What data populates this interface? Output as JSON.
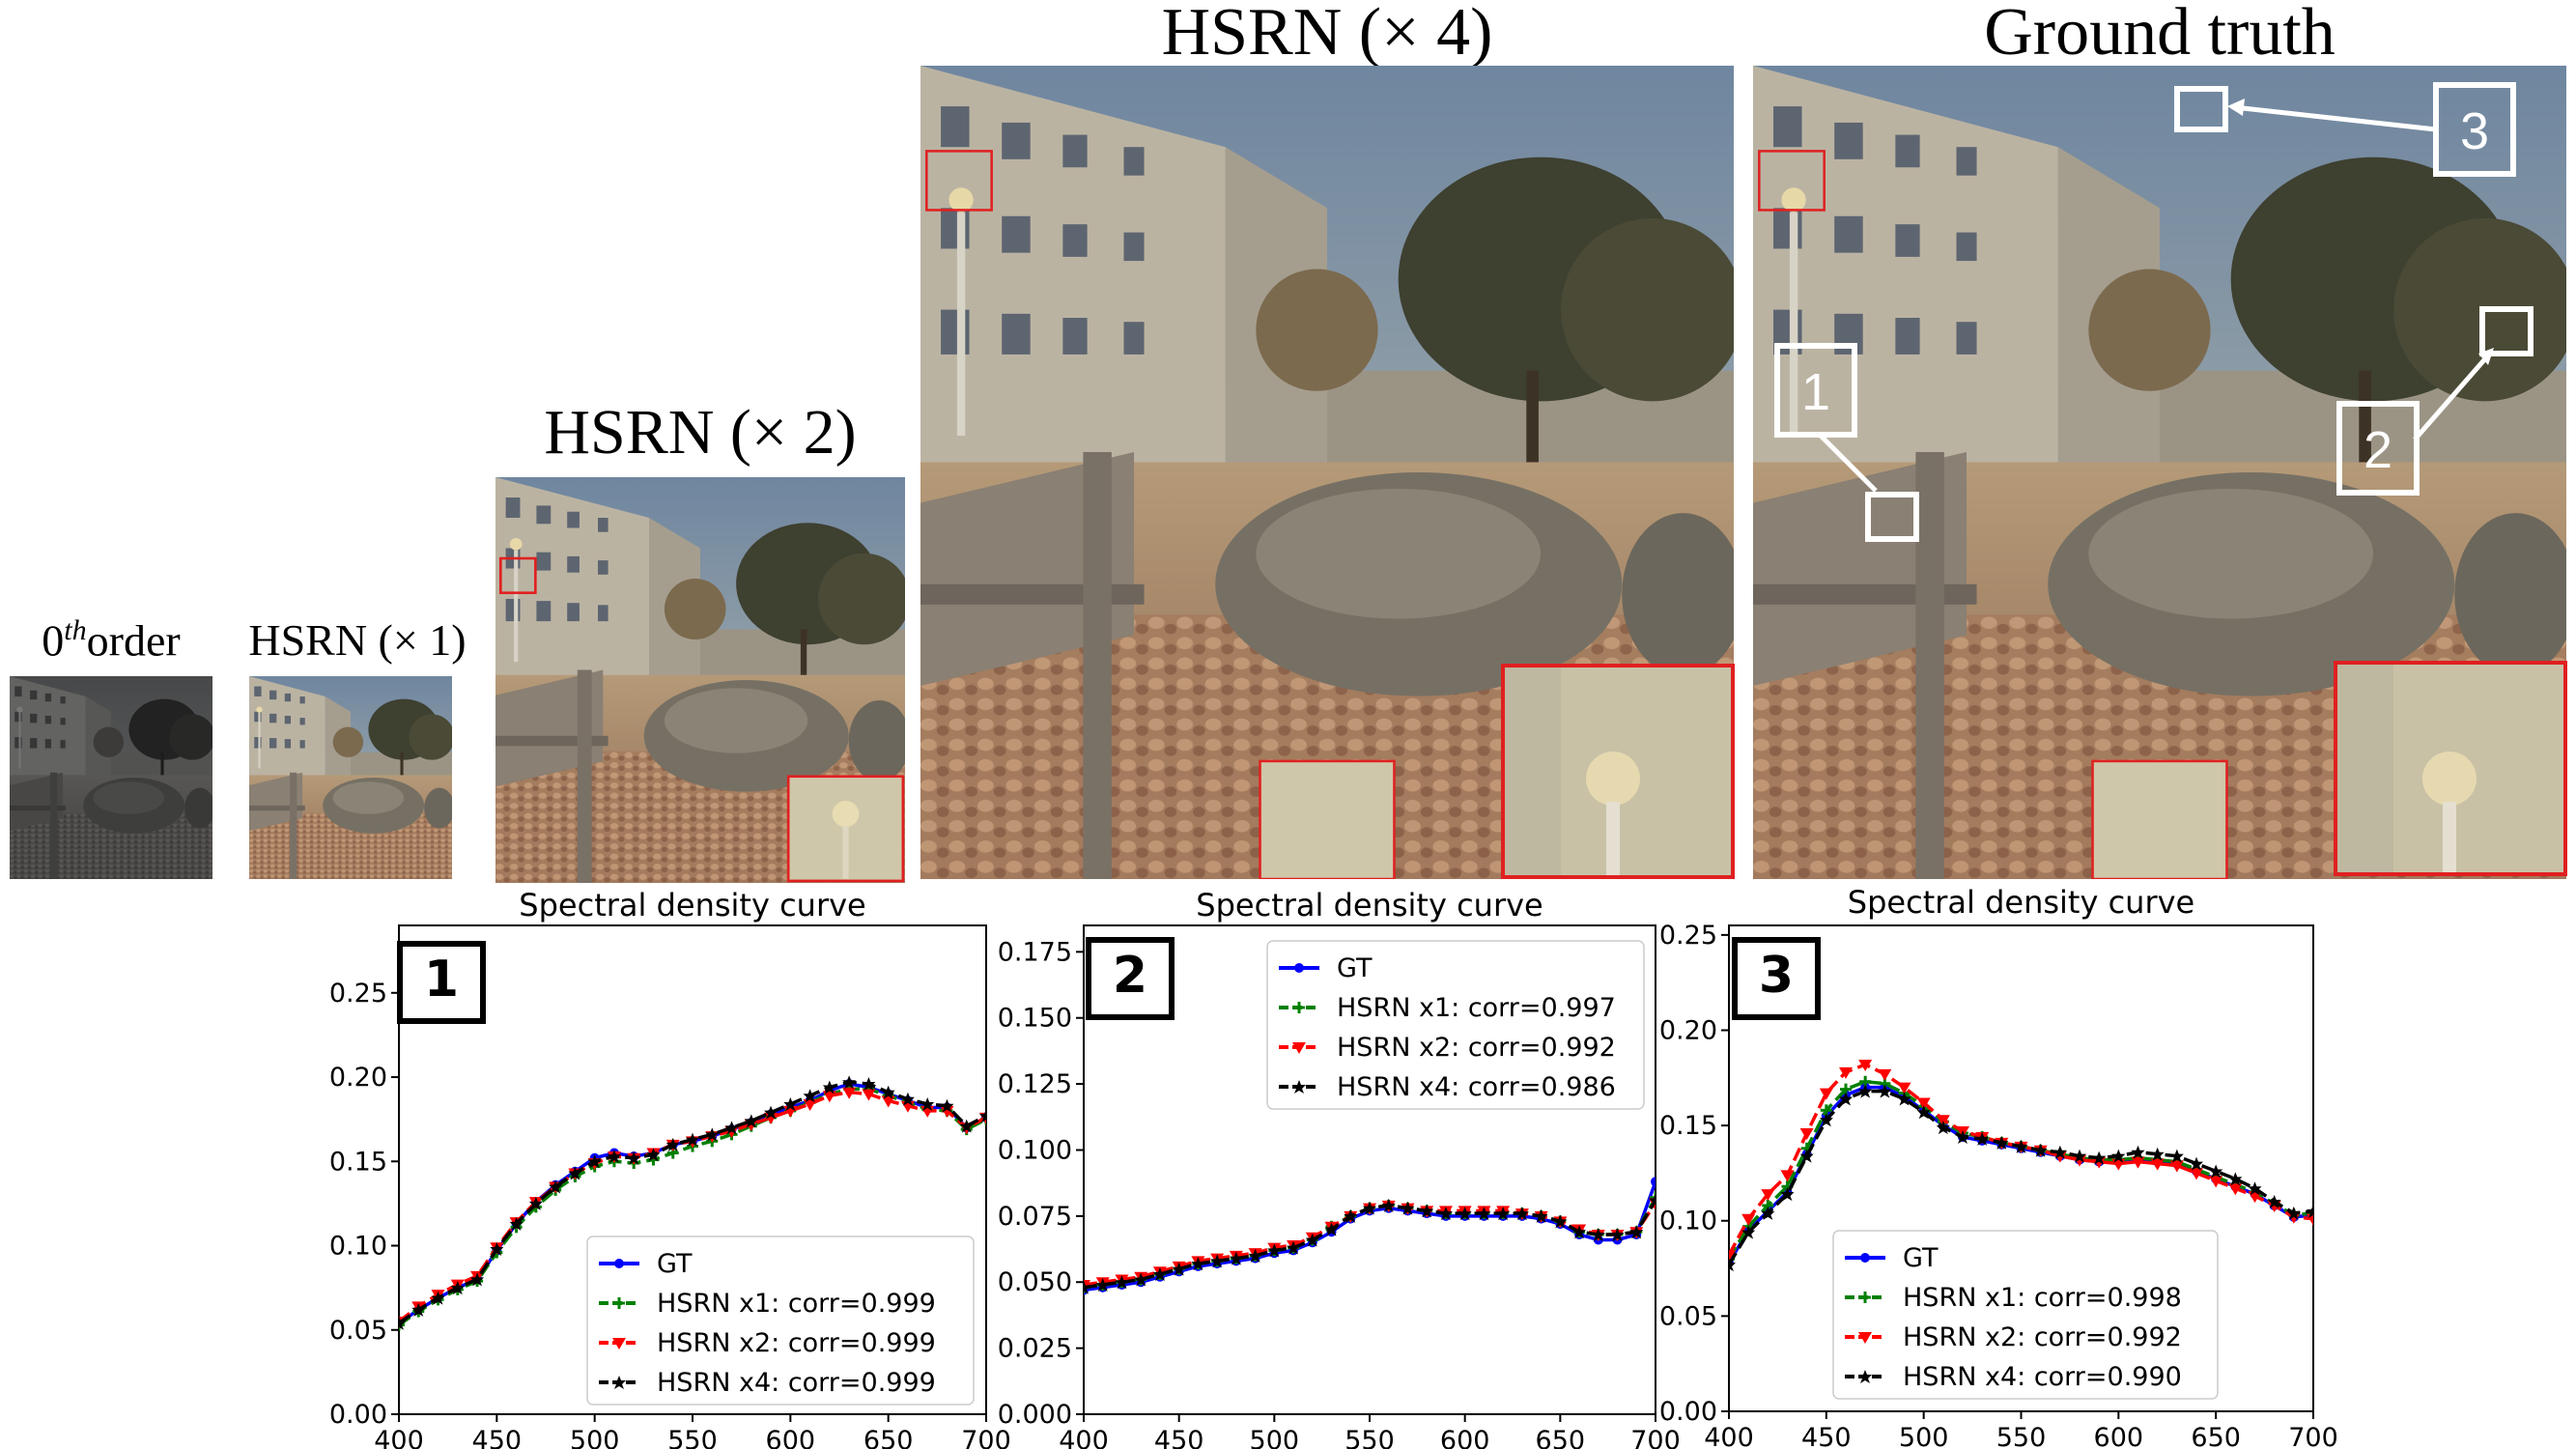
{
  "figure": {
    "panels": [
      {
        "id": "zeroth",
        "title_main": "0",
        "title_sup": "th",
        "title_sub": "order"
      },
      {
        "id": "x1",
        "title": "HSRN (× 1)"
      },
      {
        "id": "x2",
        "title": "HSRN (× 2)"
      },
      {
        "id": "x4",
        "title": "HSRN (× 4)"
      },
      {
        "id": "gt",
        "title": "Ground truth"
      }
    ],
    "callouts": [
      "1",
      "2",
      "3"
    ]
  },
  "colors": {
    "gt": "#0000ff",
    "x1": "#008000",
    "x2": "#ff0000",
    "x4": "#000000",
    "zoom_box": "#e02020",
    "callout_box": "#ffffff"
  },
  "chart_data": [
    {
      "type": "line",
      "panel_label": "1",
      "title": "Spectral density curve",
      "xlim": [
        400,
        700
      ],
      "ylim": [
        0.0,
        0.29
      ],
      "xticks": [
        "400",
        "450",
        "500",
        "550",
        "600",
        "650",
        "700"
      ],
      "yticks": [
        "0.00",
        "0.05",
        "0.10",
        "0.15",
        "0.20",
        "0.25"
      ],
      "legend_position": "lower-right",
      "x": [
        400,
        410,
        420,
        430,
        440,
        450,
        460,
        470,
        480,
        490,
        500,
        510,
        520,
        530,
        540,
        550,
        560,
        570,
        580,
        590,
        600,
        610,
        620,
        630,
        640,
        650,
        660,
        670,
        680,
        690,
        700
      ],
      "series": [
        {
          "name": "GT",
          "key": "gt",
          "values": [
            0.054,
            0.062,
            0.069,
            0.075,
            0.08,
            0.097,
            0.113,
            0.126,
            0.136,
            0.144,
            0.152,
            0.155,
            0.153,
            0.155,
            0.16,
            0.162,
            0.165,
            0.169,
            0.173,
            0.178,
            0.182,
            0.186,
            0.192,
            0.196,
            0.194,
            0.19,
            0.186,
            0.182,
            0.182,
            0.17,
            0.176
          ]
        },
        {
          "name": "HSRN x1: corr=0.999",
          "key": "x1",
          "values": [
            0.053,
            0.061,
            0.068,
            0.074,
            0.079,
            0.096,
            0.111,
            0.123,
            0.133,
            0.141,
            0.147,
            0.15,
            0.149,
            0.151,
            0.155,
            0.159,
            0.162,
            0.166,
            0.171,
            0.176,
            0.18,
            0.185,
            0.19,
            0.193,
            0.193,
            0.189,
            0.185,
            0.181,
            0.18,
            0.169,
            0.175
          ]
        },
        {
          "name": "HSRN x2: corr=0.999",
          "key": "x2",
          "values": [
            0.055,
            0.064,
            0.071,
            0.077,
            0.082,
            0.099,
            0.114,
            0.126,
            0.135,
            0.143,
            0.149,
            0.153,
            0.152,
            0.155,
            0.16,
            0.162,
            0.165,
            0.168,
            0.172,
            0.176,
            0.18,
            0.184,
            0.189,
            0.191,
            0.19,
            0.186,
            0.183,
            0.18,
            0.18,
            0.17,
            0.176
          ]
        },
        {
          "name": "HSRN x4: corr=0.999",
          "key": "x4",
          "values": [
            0.054,
            0.062,
            0.069,
            0.075,
            0.08,
            0.098,
            0.113,
            0.125,
            0.135,
            0.143,
            0.15,
            0.153,
            0.152,
            0.154,
            0.16,
            0.163,
            0.166,
            0.17,
            0.174,
            0.179,
            0.184,
            0.189,
            0.194,
            0.197,
            0.196,
            0.191,
            0.187,
            0.184,
            0.183,
            0.171,
            0.177
          ]
        }
      ]
    },
    {
      "type": "line",
      "panel_label": "2",
      "title": "Spectral density curve",
      "xlim": [
        400,
        700
      ],
      "ylim": [
        0.0,
        0.185
      ],
      "xticks": [
        "400",
        "450",
        "500",
        "550",
        "600",
        "650",
        "700"
      ],
      "yticks": [
        "0.000",
        "0.025",
        "0.050",
        "0.075",
        "0.100",
        "0.125",
        "0.150",
        "0.175"
      ],
      "legend_position": "upper-right",
      "x": [
        400,
        410,
        420,
        430,
        440,
        450,
        460,
        470,
        480,
        490,
        500,
        510,
        520,
        530,
        540,
        550,
        560,
        570,
        580,
        590,
        600,
        610,
        620,
        630,
        640,
        650,
        660,
        670,
        680,
        690,
        700
      ],
      "series": [
        {
          "name": "GT",
          "key": "gt",
          "values": [
            0.047,
            0.048,
            0.049,
            0.05,
            0.052,
            0.054,
            0.056,
            0.057,
            0.058,
            0.059,
            0.061,
            0.062,
            0.065,
            0.069,
            0.074,
            0.077,
            0.078,
            0.077,
            0.076,
            0.075,
            0.075,
            0.075,
            0.075,
            0.075,
            0.074,
            0.072,
            0.068,
            0.066,
            0.066,
            0.068,
            0.088
          ]
        },
        {
          "name": "HSRN x1: corr=0.997",
          "key": "x1",
          "values": [
            0.048,
            0.049,
            0.05,
            0.051,
            0.053,
            0.055,
            0.057,
            0.058,
            0.059,
            0.06,
            0.062,
            0.063,
            0.066,
            0.071,
            0.075,
            0.078,
            0.079,
            0.078,
            0.077,
            0.076,
            0.076,
            0.076,
            0.076,
            0.076,
            0.075,
            0.073,
            0.069,
            0.068,
            0.068,
            0.069,
            0.082
          ]
        },
        {
          "name": "HSRN x2: corr=0.992",
          "key": "x2",
          "values": [
            0.049,
            0.05,
            0.051,
            0.052,
            0.054,
            0.056,
            0.058,
            0.059,
            0.06,
            0.061,
            0.063,
            0.064,
            0.067,
            0.071,
            0.075,
            0.078,
            0.079,
            0.078,
            0.077,
            0.077,
            0.077,
            0.077,
            0.077,
            0.076,
            0.075,
            0.073,
            0.07,
            0.068,
            0.068,
            0.069,
            0.08
          ]
        },
        {
          "name": "HSRN x4: corr=0.986",
          "key": "x4",
          "values": [
            0.048,
            0.049,
            0.05,
            0.051,
            0.053,
            0.055,
            0.057,
            0.058,
            0.059,
            0.06,
            0.062,
            0.063,
            0.066,
            0.07,
            0.075,
            0.078,
            0.079,
            0.078,
            0.077,
            0.076,
            0.076,
            0.076,
            0.076,
            0.076,
            0.075,
            0.073,
            0.069,
            0.068,
            0.068,
            0.069,
            0.081
          ]
        }
      ]
    },
    {
      "type": "line",
      "panel_label": "3",
      "title": "Spectral density curve",
      "xlim": [
        400,
        700
      ],
      "ylim": [
        0.0,
        0.255
      ],
      "xticks": [
        "400",
        "450",
        "500",
        "550",
        "600",
        "650",
        "700"
      ],
      "yticks": [
        "0.00",
        "0.05",
        "0.10",
        "0.15",
        "0.20",
        "0.25"
      ],
      "legend_position": "lower-center",
      "x": [
        400,
        410,
        420,
        430,
        440,
        450,
        460,
        470,
        480,
        490,
        500,
        510,
        520,
        530,
        540,
        550,
        560,
        570,
        580,
        590,
        600,
        610,
        620,
        630,
        640,
        650,
        660,
        670,
        680,
        690,
        700
      ],
      "series": [
        {
          "name": "GT",
          "key": "gt",
          "values": [
            0.078,
            0.095,
            0.105,
            0.115,
            0.135,
            0.155,
            0.166,
            0.17,
            0.17,
            0.165,
            0.158,
            0.15,
            0.144,
            0.142,
            0.14,
            0.138,
            0.136,
            0.134,
            0.132,
            0.131,
            0.131,
            0.132,
            0.131,
            0.13,
            0.126,
            0.122,
            0.118,
            0.114,
            0.108,
            0.102,
            0.103
          ]
        },
        {
          "name": "HSRN x1: corr=0.998",
          "key": "x1",
          "values": [
            0.08,
            0.097,
            0.108,
            0.118,
            0.138,
            0.158,
            0.169,
            0.173,
            0.172,
            0.167,
            0.16,
            0.152,
            0.146,
            0.144,
            0.141,
            0.139,
            0.137,
            0.135,
            0.133,
            0.132,
            0.132,
            0.133,
            0.132,
            0.131,
            0.127,
            0.123,
            0.119,
            0.115,
            0.109,
            0.103,
            0.104
          ]
        },
        {
          "name": "HSRN x2: corr=0.992",
          "key": "x2",
          "values": [
            0.082,
            0.101,
            0.114,
            0.124,
            0.146,
            0.167,
            0.178,
            0.182,
            0.177,
            0.17,
            0.162,
            0.153,
            0.147,
            0.144,
            0.141,
            0.139,
            0.137,
            0.134,
            0.132,
            0.131,
            0.13,
            0.131,
            0.13,
            0.129,
            0.125,
            0.121,
            0.117,
            0.113,
            0.108,
            0.102,
            0.101
          ]
        },
        {
          "name": "HSRN x4: corr=0.990",
          "key": "x4",
          "values": [
            0.077,
            0.094,
            0.104,
            0.114,
            0.134,
            0.153,
            0.164,
            0.168,
            0.168,
            0.164,
            0.157,
            0.149,
            0.144,
            0.143,
            0.141,
            0.139,
            0.137,
            0.136,
            0.134,
            0.133,
            0.134,
            0.136,
            0.135,
            0.134,
            0.13,
            0.126,
            0.122,
            0.117,
            0.11,
            0.104,
            0.105
          ]
        }
      ]
    }
  ]
}
